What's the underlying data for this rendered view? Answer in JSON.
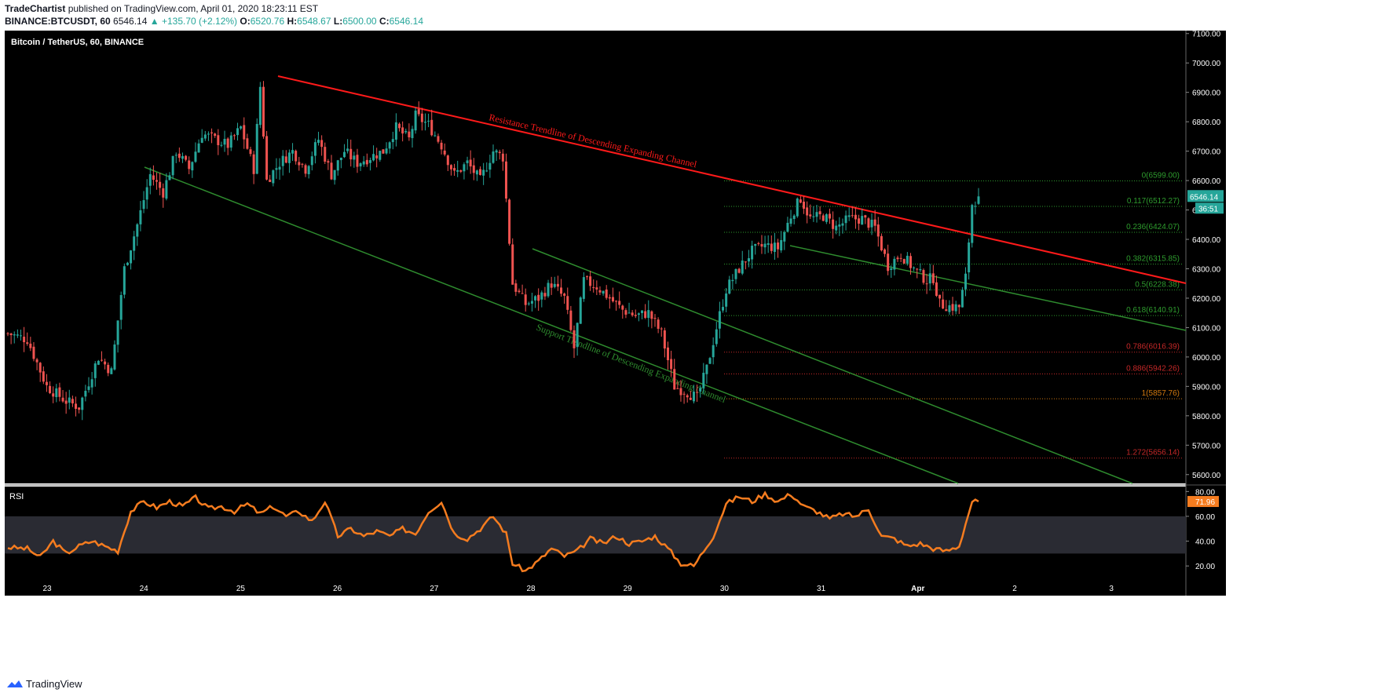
{
  "header": {
    "author": "TradeChartist",
    "published_text": "published on TradingView.com, April 01, 2020 18:23:11 EST",
    "symbol_line": "BINANCE:BTCUSDT, 60",
    "last": "6546.14",
    "change": "▲ +135.70 (+2.12%)",
    "o_label": "O:",
    "o": "6520.76",
    "h_label": "H:",
    "h": "6548.67",
    "l_label": "L:",
    "l": "6500.00",
    "c_label": "C:",
    "c": "6546.14"
  },
  "footer": {
    "brand": "TradingView"
  },
  "colors": {
    "background": "#000000",
    "up": "#26a69a",
    "down": "#ef5350",
    "resistance": "#ff1a1a",
    "support": "#2e8b2e",
    "rsi_line": "#f57c1f",
    "rsi_band": "#2a2b33",
    "axis_text": "#ffffff",
    "fib_up": "#2e9c2e",
    "fib_down": "#c62828",
    "fib_one": "#d1780f"
  },
  "chart_data": [
    {
      "type": "candlestick",
      "title": "Bitcoin / TetherUS, 60, BINANCE",
      "y_axis_ticks": [
        "5600.00",
        "5700.00",
        "5800.00",
        "5900.00",
        "6000.00",
        "6100.00",
        "6200.00",
        "6300.00",
        "6400.00",
        "6500.00",
        "6600.00",
        "6700.00",
        "6800.00",
        "6900.00",
        "7000.00",
        "7100.00"
      ],
      "ylim": [
        5570,
        7110
      ],
      "x_axis_ticks": [
        "23",
        "24",
        "25",
        "26",
        "27",
        "28",
        "29",
        "30",
        "31",
        "Apr",
        "2",
        "3"
      ],
      "last_price_label": "6546.14",
      "countdown_label": "36:51",
      "anchor_closes": [
        [
          0,
          6080
        ],
        [
          6,
          6060
        ],
        [
          12,
          5900
        ],
        [
          18,
          5850
        ],
        [
          22,
          5830
        ],
        [
          28,
          6000
        ],
        [
          32,
          5950
        ],
        [
          36,
          6300
        ],
        [
          40,
          6450
        ],
        [
          44,
          6620
        ],
        [
          48,
          6560
        ],
        [
          52,
          6700
        ],
        [
          56,
          6640
        ],
        [
          60,
          6760
        ],
        [
          64,
          6740
        ],
        [
          68,
          6720
        ],
        [
          72,
          6780
        ],
        [
          76,
          6640
        ],
        [
          78,
          6920
        ],
        [
          80,
          6600
        ],
        [
          84,
          6660
        ],
        [
          88,
          6700
        ],
        [
          92,
          6640
        ],
        [
          96,
          6740
        ],
        [
          100,
          6620
        ],
        [
          104,
          6700
        ],
        [
          108,
          6660
        ],
        [
          112,
          6680
        ],
        [
          116,
          6700
        ],
        [
          120,
          6780
        ],
        [
          124,
          6740
        ],
        [
          126,
          6820
        ],
        [
          130,
          6790
        ],
        [
          134,
          6720
        ],
        [
          138,
          6620
        ],
        [
          142,
          6660
        ],
        [
          146,
          6600
        ],
        [
          150,
          6700
        ],
        [
          153,
          6680
        ],
        [
          156,
          6250
        ],
        [
          160,
          6180
        ],
        [
          164,
          6200
        ],
        [
          168,
          6250
        ],
        [
          172,
          6200
        ],
        [
          175,
          6030
        ],
        [
          178,
          6260
        ],
        [
          182,
          6240
        ],
        [
          186,
          6200
        ],
        [
          190,
          6160
        ],
        [
          194,
          6140
        ],
        [
          198,
          6150
        ],
        [
          202,
          6080
        ],
        [
          206,
          5900
        ],
        [
          210,
          5880
        ],
        [
          213,
          5860
        ],
        [
          216,
          5960
        ],
        [
          219,
          6100
        ],
        [
          222,
          6230
        ],
        [
          226,
          6300
        ],
        [
          230,
          6360
        ],
        [
          234,
          6380
        ],
        [
          238,
          6370
        ],
        [
          242,
          6480
        ],
        [
          245,
          6540
        ],
        [
          248,
          6470
        ],
        [
          252,
          6480
        ],
        [
          256,
          6440
        ],
        [
          260,
          6470
        ],
        [
          264,
          6470
        ],
        [
          268,
          6440
        ],
        [
          272,
          6310
        ],
        [
          276,
          6350
        ],
        [
          280,
          6300
        ],
        [
          284,
          6260
        ],
        [
          286,
          6270
        ],
        [
          288,
          6180
        ],
        [
          292,
          6170
        ],
        [
          294,
          6170
        ],
        [
          296,
          6270
        ],
        [
          298,
          6520
        ],
        [
          300,
          6546
        ]
      ],
      "annotations": [
        {
          "text": "Resistance Trendline of Descending Expanding Channel"
        },
        {
          "text": "Support Trendline of Descending Expanding Channel"
        }
      ],
      "fib_levels": [
        {
          "ratio": "0",
          "price": 6599.0,
          "label": "0(6599.00)"
        },
        {
          "ratio": "0.117",
          "price": 6512.27,
          "label": "0.117(6512.27)"
        },
        {
          "ratio": "0.236",
          "price": 6424.07,
          "label": "0.236(6424.07)"
        },
        {
          "ratio": "0.382",
          "price": 6315.85,
          "label": "0.382(6315.85)"
        },
        {
          "ratio": "0.5",
          "price": 6228.38,
          "label": "0.5(6228.38)"
        },
        {
          "ratio": "0.618",
          "price": 6140.91,
          "label": "0.618(6140.91)"
        },
        {
          "ratio": "0.786",
          "price": 6016.39,
          "label": "0.786(6016.39)"
        },
        {
          "ratio": "0.886",
          "price": 5942.26,
          "label": "0.886(5942.26)"
        },
        {
          "ratio": "1",
          "price": 5857.76,
          "label": "1(5857.76)"
        },
        {
          "ratio": "1.272",
          "price": 5656.14,
          "label": "1.272(5656.14)"
        }
      ]
    },
    {
      "type": "line",
      "title": "RSI",
      "y_axis_ticks": [
        "20.00",
        "40.00",
        "60.00",
        "80.00"
      ],
      "ylim": [
        10,
        84
      ],
      "band": [
        30,
        60
      ],
      "last_value_label": "71.96",
      "anchors": [
        [
          0,
          35
        ],
        [
          6,
          34
        ],
        [
          10,
          27
        ],
        [
          14,
          40
        ],
        [
          18,
          30
        ],
        [
          22,
          36
        ],
        [
          26,
          40
        ],
        [
          30,
          36
        ],
        [
          34,
          32
        ],
        [
          38,
          64
        ],
        [
          42,
          72
        ],
        [
          46,
          67
        ],
        [
          50,
          72
        ],
        [
          54,
          68
        ],
        [
          58,
          75
        ],
        [
          62,
          66
        ],
        [
          66,
          68
        ],
        [
          70,
          64
        ],
        [
          74,
          70
        ],
        [
          78,
          62
        ],
        [
          82,
          68
        ],
        [
          86,
          60
        ],
        [
          90,
          64
        ],
        [
          94,
          56
        ],
        [
          98,
          72
        ],
        [
          102,
          44
        ],
        [
          106,
          50
        ],
        [
          110,
          44
        ],
        [
          114,
          48
        ],
        [
          118,
          44
        ],
        [
          122,
          50
        ],
        [
          126,
          46
        ],
        [
          130,
          64
        ],
        [
          134,
          72
        ],
        [
          138,
          46
        ],
        [
          142,
          42
        ],
        [
          146,
          50
        ],
        [
          150,
          60
        ],
        [
          154,
          46
        ],
        [
          156,
          22
        ],
        [
          160,
          16
        ],
        [
          164,
          24
        ],
        [
          168,
          34
        ],
        [
          172,
          28
        ],
        [
          176,
          32
        ],
        [
          180,
          42
        ],
        [
          184,
          38
        ],
        [
          188,
          44
        ],
        [
          192,
          38
        ],
        [
          196,
          40
        ],
        [
          200,
          44
        ],
        [
          204,
          34
        ],
        [
          208,
          22
        ],
        [
          212,
          20
        ],
        [
          214,
          28
        ],
        [
          218,
          44
        ],
        [
          222,
          70
        ],
        [
          226,
          76
        ],
        [
          230,
          72
        ],
        [
          234,
          78
        ],
        [
          238,
          72
        ],
        [
          242,
          78
        ],
        [
          246,
          68
        ],
        [
          250,
          64
        ],
        [
          254,
          58
        ],
        [
          258,
          62
        ],
        [
          262,
          60
        ],
        [
          266,
          66
        ],
        [
          270,
          44
        ],
        [
          274,
          42
        ],
        [
          278,
          36
        ],
        [
          282,
          38
        ],
        [
          286,
          34
        ],
        [
          290,
          32
        ],
        [
          294,
          36
        ],
        [
          298,
          72
        ]
      ]
    }
  ]
}
